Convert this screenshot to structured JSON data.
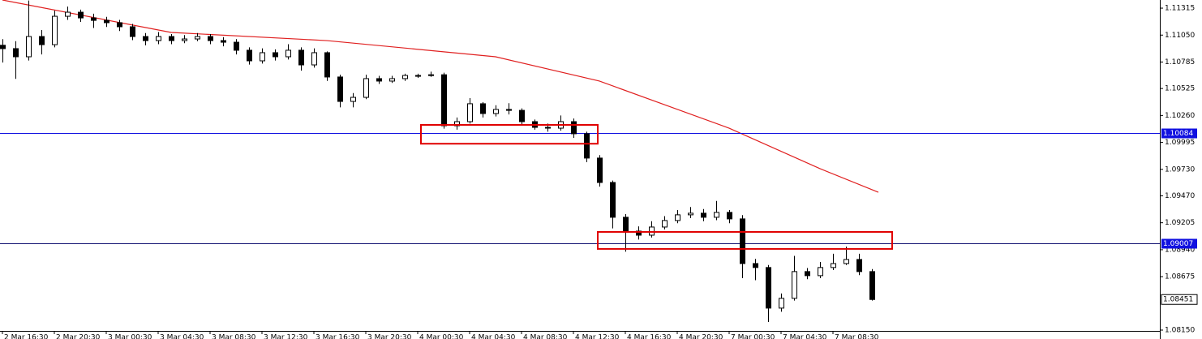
{
  "chart_data": {
    "type": "candlestick",
    "categories": [
      "2 Mar 16:30",
      null,
      null,
      null,
      "2 Mar 20:30",
      null,
      null,
      null,
      "3 Mar 00:30",
      null,
      null,
      null,
      "3 Mar 04:30",
      null,
      null,
      null,
      "3 Mar 08:30",
      null,
      null,
      null,
      "3 Mar 12:30",
      null,
      null,
      null,
      "3 Mar 16:30",
      null,
      null,
      null,
      "3 Mar 20:30",
      null,
      null,
      null,
      "4 Mar 00:30",
      null,
      null,
      null,
      "4 Mar 04:30",
      null,
      null,
      null,
      "4 Mar 08:30",
      null,
      null,
      null,
      "4 Mar 12:30",
      null,
      null,
      null,
      "4 Mar 16:30",
      null,
      null,
      null,
      "4 Mar 20:30",
      null,
      null,
      null,
      "7 Mar 00:30",
      null,
      null,
      null,
      "7 Mar 04:30",
      null,
      null,
      null,
      "7 Mar 08:30",
      null,
      null,
      null
    ],
    "open": [
      1.1095,
      1.10917,
      1.10837,
      1.11036,
      1.10956,
      1.11235,
      1.11275,
      1.11219,
      1.11195,
      1.11172,
      1.11132,
      1.11036,
      1.10996,
      1.11036,
      1.10996,
      1.11012,
      1.11036,
      1.10996,
      1.1098,
      1.10901,
      1.10797,
      1.10877,
      1.10837,
      1.10901,
      1.10757,
      1.10877,
      1.10638,
      1.10398,
      1.10438,
      1.10622,
      1.10598,
      1.10622,
      1.10653,
      1.10653,
      1.1066,
      1.10159,
      1.10199,
      1.10375,
      1.10279,
      1.10319,
      1.1031,
      1.10199,
      1.10143,
      1.10135,
      1.10199,
      1.1008,
      1.09841,
      1.09601,
      1.09259,
      1.09123,
      1.09083,
      1.09163,
      1.09227,
      1.09283,
      1.09299,
      1.09259,
      1.09307,
      1.09243,
      1.08804,
      1.08765,
      1.08366,
      1.08462,
      1.08725,
      1.08685,
      1.08765,
      1.08804,
      1.08844,
      1.08725
    ],
    "high": [
      1.1101,
      1.1099,
      1.1139,
      1.111,
      1.1129,
      1.1133,
      1.113,
      1.1126,
      1.1123,
      1.112,
      1.1116,
      1.1107,
      1.1108,
      1.1106,
      1.1105,
      1.1107,
      1.1106,
      1.1103,
      1.1101,
      1.1093,
      1.1092,
      1.1091,
      1.1096,
      1.1093,
      1.1092,
      1.1089,
      1.1066,
      1.1048,
      1.1066,
      1.1065,
      1.1065,
      1.1067,
      1.1067,
      1.1069,
      1.1068,
      1.1024,
      1.1043,
      1.1039,
      1.1036,
      1.1038,
      1.1033,
      1.1022,
      1.1018,
      1.1026,
      1.1023,
      1.101,
      1.0987,
      1.0962,
      1.0929,
      1.0917,
      1.0922,
      1.0927,
      1.0933,
      1.0936,
      1.0934,
      1.0942,
      1.0933,
      1.0928,
      1.0885,
      1.0879,
      1.0851,
      1.0888,
      1.0876,
      1.0882,
      1.089,
      1.0897,
      1.089,
      1.0875
    ],
    "low": [
      1.1078,
      1.1062,
      1.108,
      1.1086,
      1.1093,
      1.112,
      1.1118,
      1.1112,
      1.1113,
      1.1109,
      1.11,
      1.1095,
      1.1096,
      1.1096,
      1.1097,
      1.1099,
      1.1096,
      1.1094,
      1.1086,
      1.1076,
      1.1077,
      1.108,
      1.1081,
      1.107,
      1.1073,
      1.106,
      1.1034,
      1.1034,
      1.1042,
      1.1057,
      1.1058,
      1.106,
      1.1063,
      1.1064,
      1.1013,
      1.1012,
      1.1018,
      1.1024,
      1.1025,
      1.1027,
      1.1016,
      1.1012,
      1.101,
      1.1011,
      1.1004,
      1.098,
      1.0956,
      1.0915,
      1.0892,
      1.0904,
      1.0906,
      1.0914,
      1.092,
      1.0925,
      1.0922,
      1.0923,
      1.092,
      1.0866,
      1.0864,
      1.0823,
      1.0833,
      1.0844,
      1.0865,
      1.0866,
      1.0874,
      1.0879,
      1.0869,
      1.0844
    ],
    "close": [
      1.10917,
      1.10837,
      1.11036,
      1.10956,
      1.11235,
      1.11275,
      1.11219,
      1.11195,
      1.11172,
      1.11132,
      1.11036,
      1.10996,
      1.11036,
      1.10996,
      1.11012,
      1.11036,
      1.10996,
      1.1098,
      1.10901,
      1.10797,
      1.10877,
      1.10837,
      1.10901,
      1.10757,
      1.10877,
      1.10638,
      1.10398,
      1.10438,
      1.10622,
      1.10598,
      1.10622,
      1.10653,
      1.10653,
      1.1066,
      1.10159,
      1.10199,
      1.10375,
      1.10279,
      1.10319,
      1.1031,
      1.10199,
      1.10143,
      1.10135,
      1.10199,
      1.1008,
      1.09841,
      1.09601,
      1.09259,
      1.09123,
      1.09083,
      1.09163,
      1.09227,
      1.09283,
      1.09299,
      1.09259,
      1.09307,
      1.09243,
      1.08804,
      1.08765,
      1.08366,
      1.08462,
      1.08725,
      1.08685,
      1.08765,
      1.08804,
      1.08844,
      1.08725,
      1.08451
    ],
    "ylim": [
      1.08142,
      1.11395
    ],
    "yticks": [
      1.11315,
      {
        "value": 1.1105,
        "label": "1.11050"
      },
      1.10785,
      1.10525,
      {
        "value": 1.1026,
        "label": "1.10260"
      },
      1.09995,
      {
        "value": 1.0973,
        "label": "1.09730"
      },
      {
        "value": 1.0947,
        "label": "1.09470"
      },
      1.09205,
      {
        "value": 1.0894,
        "label": "1.08940"
      },
      1.08675,
      {
        "value": 1.0815,
        "label": "1.08150"
      }
    ],
    "moving_average": {
      "color": "#e02020",
      "x": [
        0,
        13,
        25,
        38,
        46,
        56,
        63,
        67.5
      ],
      "values": [
        1.11395,
        1.11076,
        1.10996,
        1.10837,
        1.10598,
        1.10135,
        1.09737,
        1.09505
      ]
    },
    "levels": [
      {
        "value": 1.10084,
        "color": "#1010e0"
      },
      {
        "value": 1.09007,
        "color": "#101070"
      }
    ],
    "last_price": 1.08451,
    "zones": [
      {
        "x": [
          32.25,
          45.875
        ],
        "y": [
          1.09982,
          1.10167
        ],
        "color": "#e00000"
      },
      {
        "x": [
          45.875,
          68.56
        ],
        "y": [
          1.08948,
          1.09115
        ],
        "color": "#e00000"
      }
    ]
  }
}
